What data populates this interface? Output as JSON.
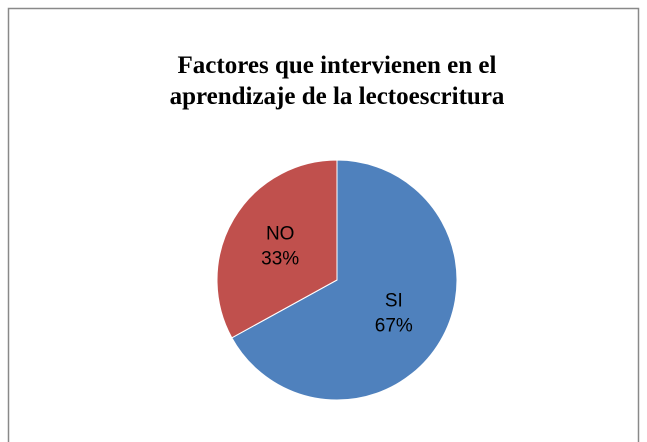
{
  "chart_data": {
    "type": "pie",
    "title": "Factores que intervienen en el aprendizaje de la lectoescritura",
    "categories": [
      "SI",
      "NO"
    ],
    "values": [
      67,
      33
    ],
    "value_labels": [
      "67%",
      "33%"
    ],
    "colors": [
      "#4f81bd",
      "#c0504d"
    ]
  }
}
